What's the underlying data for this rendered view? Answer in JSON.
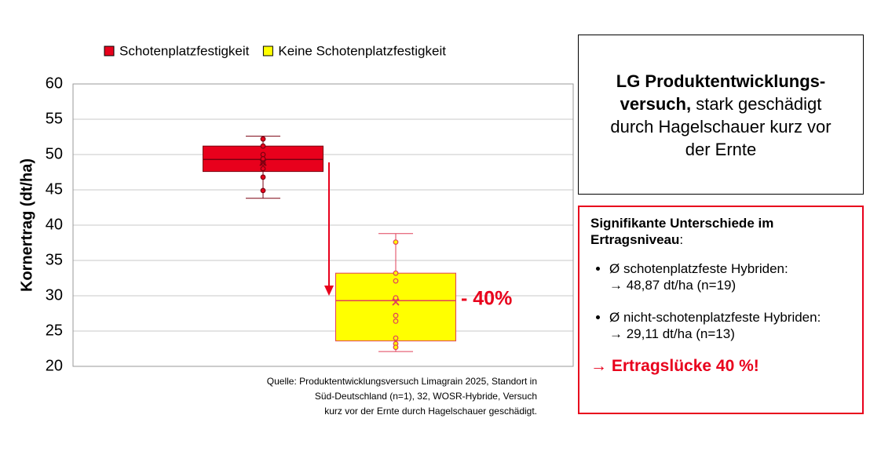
{
  "chart_data": {
    "type": "box",
    "ylabel": "Kornertrag (dt/ha)",
    "ylim": [
      20,
      60
    ],
    "yticks": [
      20,
      25,
      30,
      35,
      40,
      45,
      50,
      55,
      60
    ],
    "grid": true,
    "legend": "top",
    "series": [
      {
        "name": "Schotenplatzfestigkeit",
        "color": "#e8001c",
        "stroke": "#7a0010",
        "whisker_low": 43.8,
        "q1": 47.6,
        "median": 49.3,
        "q3": 51.2,
        "whisker_high": 52.6,
        "mean": 48.87,
        "points": [
          52.2,
          51.2,
          50.0,
          49.4,
          48.8,
          48.0,
          46.8,
          44.9
        ]
      },
      {
        "name": "Keine Schotenplatzfestigkeit",
        "color": "#ffff00",
        "stroke": "#e0405a",
        "whisker_low": 22.1,
        "q1": 23.6,
        "median": 29.3,
        "q3": 33.2,
        "whisker_high": 38.8,
        "mean": 29.11,
        "points": [
          37.6,
          33.2,
          32.1,
          29.7,
          27.2,
          26.4,
          24.0,
          23.2,
          22.7
        ]
      }
    ],
    "annotation": "- 40%",
    "annotation_color": "#e8001c",
    "source": [
      "Quelle: Produktentwicklungsversuch Limagrain 2025, Standort in",
      "Süd-Deutschland (n=1), 32, WOSR-Hybride, Versuch",
      "kurz vor der Ernte durch Hagelschauer geschädigt."
    ]
  },
  "info_box": {
    "bold_1": "LG Produktentwicklungs-",
    "bold_2": "versuch,",
    "text_1": "stark geschädigt",
    "text_2": "durch Hagelschauer kurz vor",
    "text_3": "der Ernte"
  },
  "result_box": {
    "heading_1": "Signifikante Unterschiede im",
    "heading_2": "Ertragsniveau",
    "heading_colon": ":",
    "items": [
      {
        "label": "Ø schotenplatzfeste Hybriden:",
        "value": "→ 48,87 dt/ha (n=19)"
      },
      {
        "label": "Ø nicht-schotenplatzfeste Hybriden:",
        "value": "→ 29,11 dt/ha (n=13)"
      }
    ],
    "conclusion": "→ Ertragslücke 40 %!"
  }
}
